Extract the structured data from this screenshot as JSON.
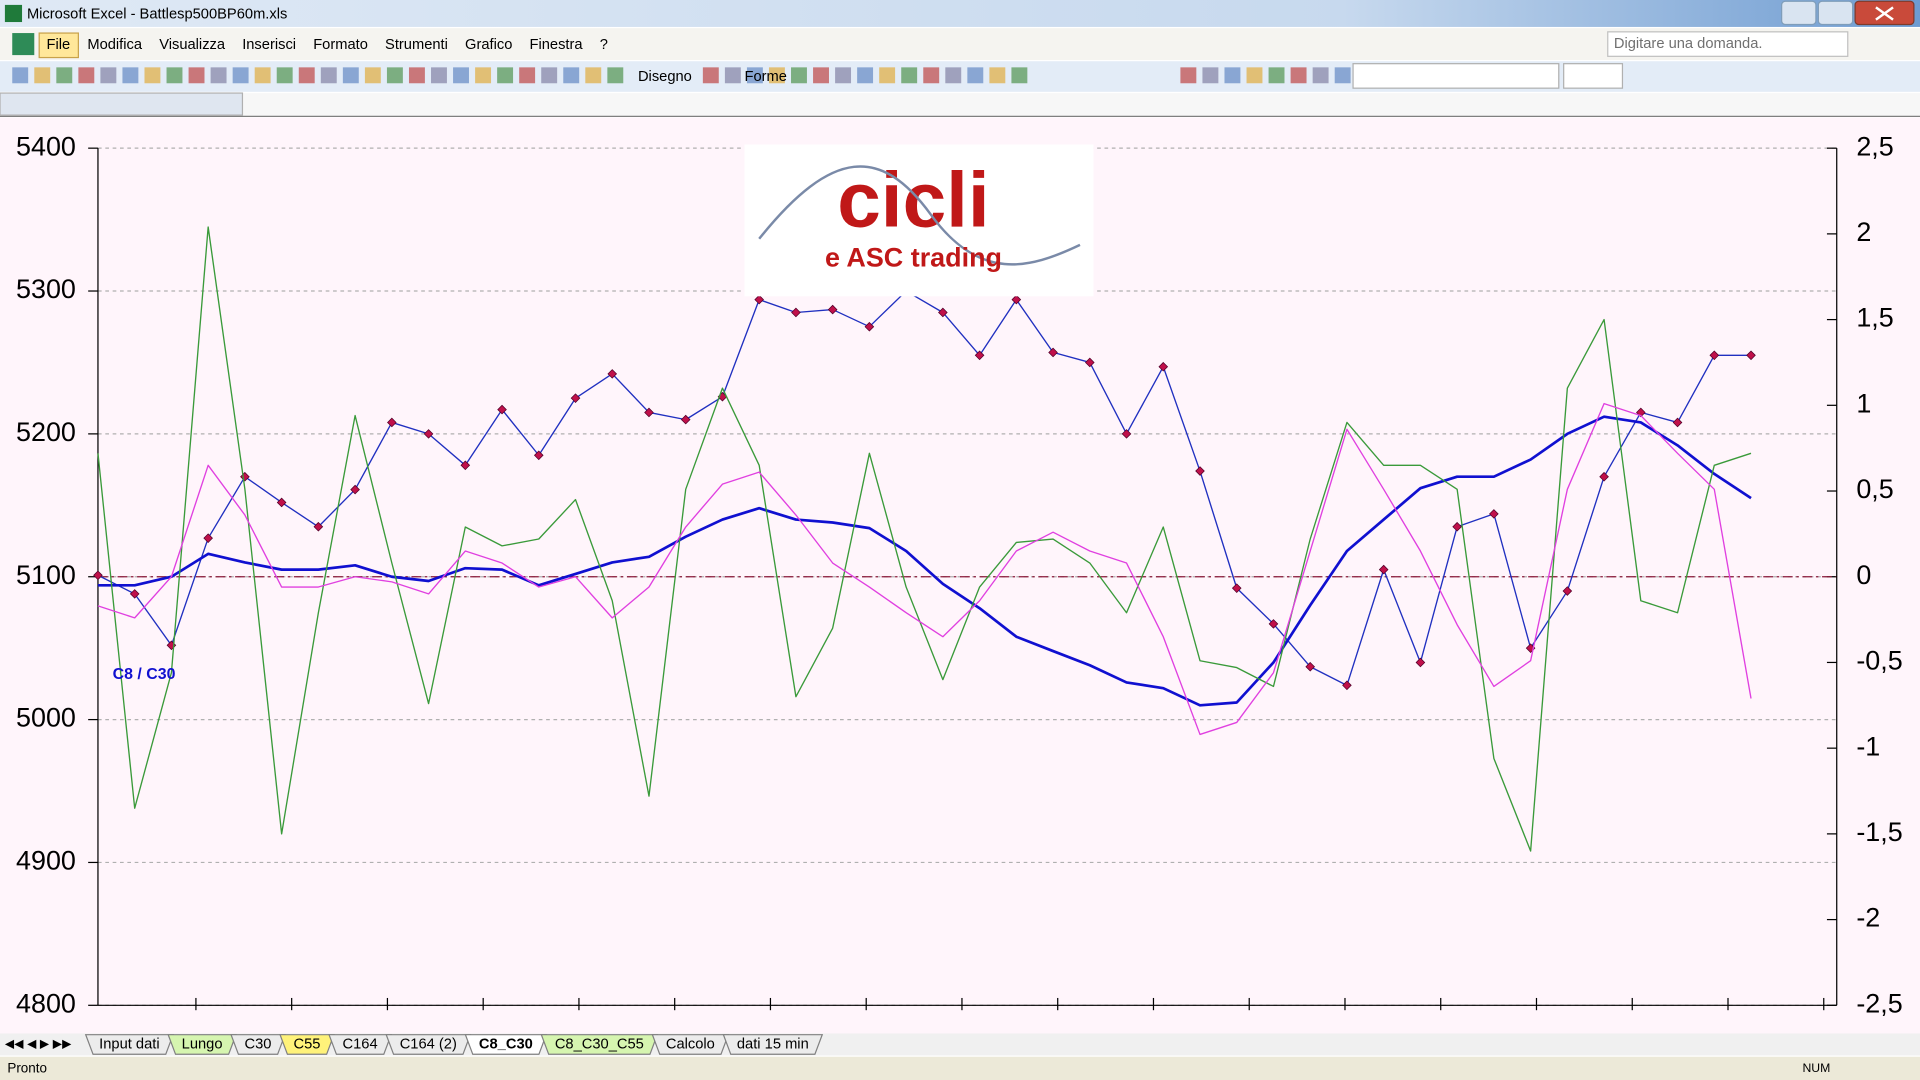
{
  "window": {
    "title": "Microsoft Excel - Battlesp500BP60m.xls"
  },
  "menu": [
    "File",
    "Modifica",
    "Visualizza",
    "Inserisci",
    "Formato",
    "Strumenti",
    "Grafico",
    "Finestra",
    "?"
  ],
  "help_box": "Digitare una domanda.",
  "toolbar": [
    "Disegno",
    "Forme"
  ],
  "chart_data": {
    "type": "line",
    "logo": {
      "title": "cicli",
      "subtitle": "e ASC trading"
    },
    "annotation": "C8 / C30",
    "ylim": [
      4800,
      5400
    ],
    "yticks": [
      4800,
      4900,
      5000,
      5100,
      5200,
      5300,
      5400
    ],
    "y2lim": [
      -2.5,
      2.5
    ],
    "y2ticks": [
      {
        "value": -2.5,
        "label": "-2,5"
      },
      -2,
      {
        "value": -1.5,
        "label": "-1,5"
      },
      -1,
      {
        "value": -0.5,
        "label": "-0,5"
      },
      0,
      {
        "value": 0.5,
        "label": "0,5"
      },
      1,
      {
        "value": 1.5,
        "label": "1,5"
      },
      2,
      {
        "value": 2.5,
        "label": "2,5"
      }
    ],
    "grid": true,
    "series": [
      {
        "color": "#c0104a",
        "line_color": "#2030c0",
        "marker": "diamond",
        "values": [
          5101,
          5088,
          5052,
          5127,
          5170,
          5152,
          5135,
          5161,
          5208,
          5200,
          5178,
          5217,
          5185,
          5225,
          5242,
          5215,
          5210,
          5226,
          5294,
          5285,
          5287,
          5275,
          5300,
          5285,
          5255,
          5294,
          5257,
          5250,
          5200,
          5247,
          5174,
          5092,
          5067,
          5037,
          5024,
          5105,
          5040,
          5135,
          5144,
          5050,
          5090,
          5170,
          5215,
          5208,
          5255,
          5255
        ]
      },
      {
        "color": "#1010d0",
        "values": [
          5094,
          5094,
          5100,
          5116,
          5110,
          5105,
          5105,
          5108,
          5100,
          5097,
          5106,
          5105,
          5094,
          5102,
          5110,
          5114,
          5128,
          5140,
          5148,
          5140,
          5138,
          5134,
          5118,
          5095,
          5078,
          5058,
          5048,
          5038,
          5026,
          5022,
          5010,
          5012,
          5040,
          5080,
          5118,
          5140,
          5162,
          5170,
          5170,
          5182,
          5200,
          5212,
          5208,
          5192,
          5172,
          5155
        ]
      },
      {
        "color": "#3a9a3a",
        "axis": "y2",
        "values": [
          0.72,
          -1.35,
          -0.56,
          2.04,
          0.51,
          -1.5,
          -0.21,
          0.94,
          0.08,
          -0.74,
          0.29,
          0.18,
          0.22,
          0.45,
          -0.14,
          -1.28,
          0.51,
          1.1,
          0.65,
          -0.7,
          -0.3,
          0.72,
          -0.06,
          -0.6,
          -0.06,
          0.2,
          0.22,
          0.08,
          -0.21,
          0.29,
          -0.49,
          -0.53,
          -0.64,
          0.22,
          0.9,
          0.65,
          0.65,
          0.51,
          -1.06,
          -1.6,
          1.1,
          1.5,
          -0.14,
          -0.21,
          0.65,
          0.72
        ]
      },
      {
        "color": "#e040e0",
        "axis": "y2",
        "values": [
          -0.17,
          -0.24,
          0,
          0.65,
          0.36,
          -0.06,
          -0.06,
          0,
          -0.03,
          -0.1,
          0.15,
          0.08,
          -0.06,
          0,
          -0.24,
          -0.06,
          0.29,
          0.54,
          0.61,
          0.36,
          0.08,
          -0.06,
          -0.21,
          -0.35,
          -0.14,
          0.15,
          0.26,
          0.15,
          0.08,
          -0.35,
          -0.92,
          -0.85,
          -0.56,
          0.15,
          0.86,
          0.51,
          0.15,
          -0.28,
          -0.64,
          -0.49,
          0.51,
          1.01,
          0.94,
          0.72,
          0.51,
          -0.71
        ]
      }
    ]
  },
  "sheet_tabs": [
    {
      "label": "Input dati",
      "color": "#ececec"
    },
    {
      "label": "Lungo",
      "color": "#d6f5b0"
    },
    {
      "label": "C30",
      "color": "#ececec"
    },
    {
      "label": "C55",
      "color": "#fff27a"
    },
    {
      "label": "C164",
      "color": "#ececec"
    },
    {
      "label": "C164 (2)",
      "color": "#ececec"
    },
    {
      "label": "C8_C30",
      "color": "#ffffff",
      "active": true
    },
    {
      "label": "C8_C30_C55",
      "color": "#d6f5b0"
    },
    {
      "label": "Calcolo",
      "color": "#ececec"
    },
    {
      "label": "dati 15 min",
      "color": "#ececec"
    }
  ],
  "status": {
    "left": "Pronto",
    "right": "NUM"
  }
}
